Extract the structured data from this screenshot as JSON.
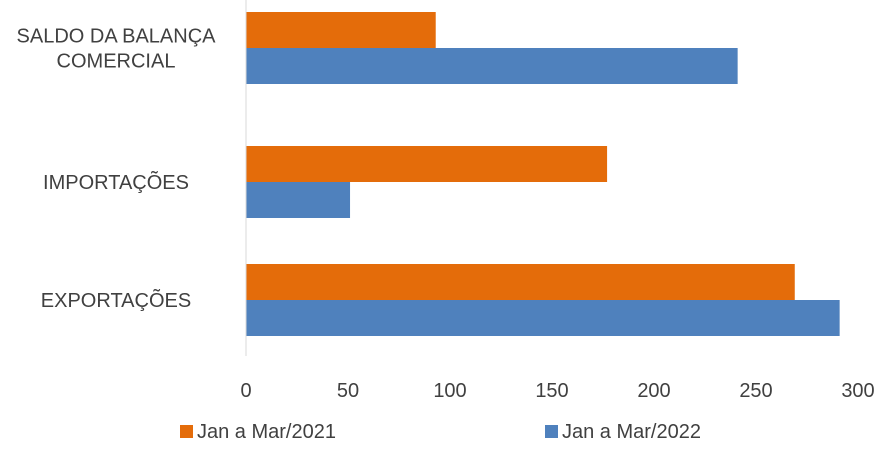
{
  "chart_data": {
    "type": "bar",
    "orientation": "horizontal",
    "categories": [
      [
        "SALDO DA BALANÇA",
        "COMERCIAL"
      ],
      [
        "IMPORTAÇÕES"
      ],
      [
        "EXPORTAÇÕES"
      ]
    ],
    "series": [
      {
        "name": "Jan a Mar/2021",
        "color": "#E46C0A",
        "values": [
          93,
          177,
          269
        ]
      },
      {
        "name": "Jan a Mar/2022",
        "color": "#4F81BD",
        "values": [
          241,
          51,
          291
        ]
      }
    ],
    "xlim": [
      0,
      300
    ],
    "xticks": [
      "0",
      "50",
      "100",
      "150",
      "200",
      "250",
      "300"
    ],
    "grid": false,
    "legend_position": "bottom"
  }
}
